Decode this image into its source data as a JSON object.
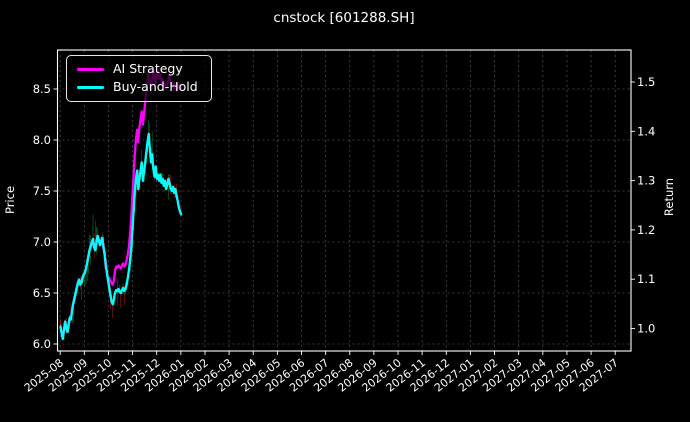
{
  "title": "cnstock [601288.SH]",
  "colors": {
    "background": "#000000",
    "text": "#ffffff",
    "frame": "#ffffff",
    "grid": "#4a4a4a",
    "candle_up": "#0fae3a",
    "candle_down": "#f22c2c",
    "ai_line": "#ff00ff",
    "bh_line": "#00ffff",
    "legend_bg": "rgba(0,0,0,0.72)",
    "legend_border": "#e8e8e8"
  },
  "legend": {
    "items": [
      {
        "label": "AI Strategy",
        "color": "#ff00ff"
      },
      {
        "label": "Buy-and-Hold",
        "color": "#00ffff"
      }
    ]
  },
  "axes": {
    "left": {
      "label": "Price",
      "ticks": [
        "6.0",
        "6.5",
        "7.0",
        "7.5",
        "8.0",
        "8.5"
      ],
      "tick_values": [
        6.0,
        6.5,
        7.0,
        7.5,
        8.0,
        8.5
      ]
    },
    "right": {
      "label": "Return",
      "ticks": [
        "1.0",
        "1.1",
        "1.2",
        "1.3",
        "1.4",
        "1.5"
      ],
      "tick_values": [
        1.0,
        1.1,
        1.2,
        1.3,
        1.4,
        1.5
      ]
    },
    "x": {
      "tick_labels": [
        "2025-08",
        "2025-09",
        "2025-10",
        "2025-11",
        "2025-12",
        "2026-01",
        "2026-02",
        "2026-03",
        "2026-04",
        "2026-05",
        "2026-06",
        "2026-07",
        "2026-08",
        "2026-09",
        "2026-10",
        "2026-11",
        "2026-12",
        "2027-01",
        "2027-02",
        "2027-03",
        "2027-04",
        "2027-05",
        "2027-06",
        "2027-07"
      ]
    }
  },
  "chart_data": {
    "type": "line",
    "overlay": "candlestick",
    "title": "cnstock [601288.SH]",
    "xlabel": "",
    "ylabel": "Price",
    "ylabel_right": "Return",
    "ylim": [
      5.93,
      8.88
    ],
    "ylim_right": [
      0.95,
      1.57
    ],
    "grid": "dashed",
    "legend_position": "upper-left",
    "data_span": [
      "2025-08",
      "2026-01"
    ],
    "x_is_daily_index": true,
    "series": [
      {
        "name": "AI Strategy",
        "color": "#ff00ff",
        "values": [
          6.17,
          6.1,
          6.05,
          6.14,
          6.22,
          6.15,
          6.12,
          6.2,
          6.26,
          6.24,
          6.33,
          6.4,
          6.45,
          6.5,
          6.55,
          6.6,
          6.63,
          6.58,
          6.6,
          6.65,
          6.68,
          6.7,
          6.74,
          6.8,
          6.86,
          6.92,
          6.96,
          7.0,
          7.03,
          6.95,
          6.92,
          7.0,
          7.06,
          7.02,
          6.97,
          7.01,
          7.04,
          6.95,
          6.88,
          6.78,
          6.7,
          6.62,
          6.65,
          6.62,
          6.6,
          6.58,
          6.62,
          6.72,
          6.76,
          6.75,
          6.77,
          6.75,
          6.74,
          6.77,
          6.79,
          6.76,
          6.78,
          6.82,
          6.88,
          6.95,
          7.08,
          7.25,
          7.45,
          7.65,
          7.85,
          8.0,
          8.1,
          7.98,
          8.12,
          8.2,
          8.28,
          8.15,
          8.25,
          8.38,
          8.48,
          8.58,
          8.68,
          8.55,
          8.48,
          8.58,
          8.7,
          8.62,
          8.55,
          8.64,
          8.68,
          8.6,
          8.65,
          8.56,
          8.6,
          8.52,
          8.56,
          8.5,
          8.54,
          8.6,
          8.64,
          8.56,
          8.52,
          8.56,
          8.5,
          8.54,
          8.48,
          8.52,
          8.55,
          8.5,
          8.53
        ]
      },
      {
        "name": "Buy-and-Hold",
        "color": "#00ffff",
        "values": [
          6.17,
          6.1,
          6.05,
          6.14,
          6.22,
          6.15,
          6.12,
          6.2,
          6.26,
          6.24,
          6.33,
          6.4,
          6.45,
          6.5,
          6.55,
          6.6,
          6.63,
          6.58,
          6.6,
          6.65,
          6.68,
          6.7,
          6.74,
          6.8,
          6.86,
          6.92,
          6.96,
          7.0,
          7.03,
          6.95,
          6.92,
          7.0,
          7.06,
          7.02,
          6.97,
          7.01,
          7.04,
          6.95,
          6.88,
          6.78,
          6.7,
          6.62,
          6.55,
          6.48,
          6.42,
          6.39,
          6.44,
          6.5,
          6.53,
          6.52,
          6.54,
          6.51,
          6.5,
          6.53,
          6.55,
          6.52,
          6.54,
          6.58,
          6.65,
          6.72,
          6.82,
          6.95,
          7.12,
          7.3,
          7.48,
          7.62,
          7.7,
          7.52,
          7.62,
          7.7,
          7.78,
          7.6,
          7.68,
          7.78,
          7.88,
          7.98,
          8.06,
          7.92,
          7.78,
          7.86,
          7.72,
          7.64,
          7.74,
          7.62,
          7.66,
          7.6,
          7.66,
          7.58,
          7.62,
          7.55,
          7.6,
          7.52,
          7.56,
          7.62,
          7.58,
          7.52,
          7.5,
          7.54,
          7.48,
          7.52,
          7.46,
          7.4,
          7.34,
          7.3,
          7.27
        ]
      }
    ],
    "candles": {
      "derived_from": "Buy-and-Hold close series",
      "up_color": "#0fae3a",
      "down_color": "#f22c2c"
    }
  }
}
